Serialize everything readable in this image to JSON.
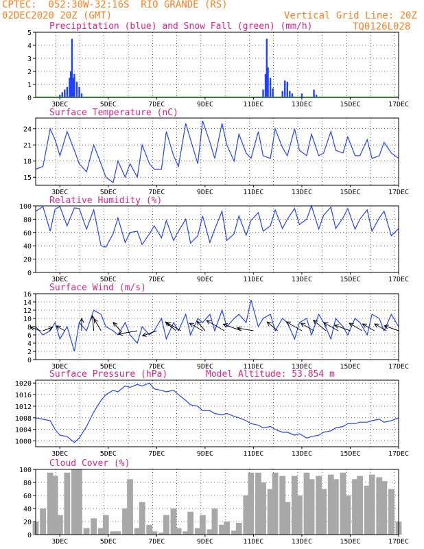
{
  "header": {
    "line1_left": "CPTEC:  052:30W-32:16S  RIO GRANDE (RS)",
    "line2_left": "02DEC2020 20Z (GMT)",
    "line2_right": "Vertical Grid Line: 20Z",
    "line3_right": "TQ0126L028"
  },
  "colors": {
    "header": "#ff7f1f",
    "title": "#e0218a",
    "line": "#2040ff",
    "snow": "#22aa22",
    "cloud": "#a8a8a8"
  },
  "chart_data": [
    {
      "id": "precip",
      "type": "bar",
      "title": "Precipitation (blue) and Snow Fall (green) (mm/h)",
      "xlabels": [
        "3DEC",
        "5DEC",
        "7DEC",
        "9DEC",
        "11DEC",
        "13DEC",
        "15DEC",
        "17DEC"
      ],
      "ylim": [
        0,
        5
      ],
      "yticks": [
        0,
        1,
        2,
        3,
        4,
        5
      ],
      "series": [
        {
          "name": "Precipitation",
          "x": [
            3.0,
            3.1,
            3.2,
            3.3,
            3.4,
            3.45,
            3.5,
            3.55,
            3.6,
            3.7,
            3.8,
            3.9,
            11.4,
            11.5,
            11.55,
            11.6,
            11.7,
            11.8,
            12.2,
            12.3,
            12.4,
            12.5,
            12.6,
            13.0,
            13.5,
            13.6
          ],
          "values": [
            0.2,
            0.4,
            0.6,
            0.8,
            1.5,
            2.0,
            4.5,
            1.5,
            1.8,
            1.2,
            0.8,
            0.3,
            0.6,
            1.8,
            4.5,
            2.3,
            1.5,
            0.7,
            0.5,
            1.3,
            1.2,
            0.5,
            0.3,
            0.3,
            0.6,
            0.2
          ]
        }
      ]
    },
    {
      "id": "temp",
      "type": "line",
      "title": "Surface Temperature (nC)",
      "xlabels": [
        "3DEC",
        "5DEC",
        "7DEC",
        "9DEC",
        "11DEC",
        "13DEC",
        "15DEC",
        "17DEC"
      ],
      "ylim": [
        13.5,
        26
      ],
      "yticks": [
        15,
        18,
        21,
        24
      ],
      "x": [
        2.0,
        2.3,
        2.6,
        2.8,
        3.0,
        3.3,
        3.6,
        3.8,
        4.1,
        4.4,
        4.7,
        4.9,
        5.2,
        5.4,
        5.7,
        5.9,
        6.2,
        6.4,
        6.7,
        6.9,
        7.2,
        7.4,
        7.7,
        7.9,
        8.2,
        8.4,
        8.7,
        8.9,
        9.2,
        9.4,
        9.7,
        9.9,
        10.2,
        10.4,
        10.7,
        10.9,
        11.2,
        11.4,
        11.7,
        11.9,
        12.2,
        12.4,
        12.7,
        12.9,
        13.2,
        13.4,
        13.7,
        13.9,
        14.2,
        14.4,
        14.7,
        14.9,
        15.2,
        15.4,
        15.7,
        15.9,
        16.2,
        16.4,
        16.7,
        17.0
      ],
      "values": [
        16.5,
        17.0,
        24.0,
        22.0,
        19.0,
        23.5,
        20.0,
        17.5,
        16.0,
        21.0,
        17.5,
        15.0,
        14.0,
        18.0,
        15.0,
        17.5,
        15.0,
        21.0,
        17.5,
        16.5,
        16.5,
        23.5,
        19.0,
        17.0,
        25.0,
        22.0,
        17.5,
        25.5,
        21.5,
        18.5,
        25.0,
        21.0,
        18.0,
        23.0,
        19.5,
        18.5,
        23.5,
        19.0,
        18.5,
        24.0,
        20.5,
        19.0,
        24.0,
        20.0,
        19.0,
        23.0,
        19.0,
        19.5,
        23.5,
        20.0,
        19.5,
        22.5,
        19.0,
        19.0,
        22.0,
        18.5,
        19.0,
        21.5,
        19.5,
        18.5
      ]
    },
    {
      "id": "rh",
      "type": "line",
      "title": "Relative Humidity (%)",
      "xlabels": [
        "3DEC",
        "5DEC",
        "7DEC",
        "9DEC",
        "11DEC",
        "13DEC",
        "15DEC",
        "17DEC"
      ],
      "ylim": [
        0,
        100
      ],
      "yticks": [
        0,
        20,
        40,
        60,
        80,
        100
      ],
      "x": [
        2.0,
        2.3,
        2.6,
        2.8,
        3.0,
        3.3,
        3.6,
        3.8,
        4.1,
        4.4,
        4.7,
        4.9,
        5.2,
        5.4,
        5.7,
        5.9,
        6.2,
        6.4,
        6.7,
        6.9,
        7.2,
        7.4,
        7.7,
        7.9,
        8.2,
        8.4,
        8.7,
        8.9,
        9.2,
        9.4,
        9.7,
        9.9,
        10.2,
        10.4,
        10.7,
        10.9,
        11.2,
        11.4,
        11.7,
        11.9,
        12.2,
        12.4,
        12.7,
        12.9,
        13.2,
        13.4,
        13.7,
        13.9,
        14.2,
        14.4,
        14.7,
        14.9,
        15.2,
        15.4,
        15.7,
        15.9,
        16.2,
        16.4,
        16.7,
        17.0
      ],
      "values": [
        92,
        99,
        62,
        95,
        99,
        70,
        97,
        96,
        65,
        94,
        40,
        38,
        58,
        82,
        45,
        60,
        62,
        42,
        58,
        70,
        52,
        78,
        48,
        62,
        80,
        44,
        55,
        85,
        45,
        65,
        92,
        48,
        58,
        85,
        56,
        78,
        90,
        62,
        70,
        94,
        66,
        80,
        96,
        72,
        80,
        100,
        65,
        86,
        98,
        66,
        82,
        96,
        65,
        80,
        94,
        62,
        82,
        92,
        55,
        66
      ]
    },
    {
      "id": "wind",
      "type": "line",
      "title": "Surface Wind (m/s)",
      "xlabels": [
        "3DEC",
        "5DEC",
        "7DEC",
        "9DEC",
        "11DEC",
        "13DEC",
        "15DEC",
        "17DEC"
      ],
      "ylim": [
        0,
        16
      ],
      "yticks": [
        0,
        2,
        4,
        6,
        8,
        10,
        12,
        14,
        16
      ],
      "x": [
        2.0,
        2.3,
        2.6,
        2.8,
        3.0,
        3.3,
        3.6,
        3.8,
        4.1,
        4.4,
        4.7,
        4.9,
        5.2,
        5.4,
        5.7,
        5.9,
        6.2,
        6.4,
        6.7,
        6.9,
        7.2,
        7.4,
        7.7,
        7.9,
        8.2,
        8.4,
        8.7,
        8.9,
        9.2,
        9.4,
        9.7,
        9.9,
        10.2,
        10.4,
        10.7,
        10.9,
        11.2,
        11.4,
        11.7,
        11.9,
        12.2,
        12.4,
        12.7,
        12.9,
        13.2,
        13.4,
        13.7,
        13.9,
        14.2,
        14.4,
        14.7,
        14.9,
        15.2,
        15.4,
        15.7,
        15.9,
        16.2,
        16.4,
        16.7,
        17.0
      ],
      "values": [
        8,
        6,
        7,
        9,
        5,
        8,
        2,
        9,
        7,
        12,
        11,
        8,
        7,
        6,
        9,
        6,
        4,
        8,
        6,
        7,
        10,
        5,
        9,
        7,
        11,
        6,
        10,
        9,
        11,
        7,
        12,
        8,
        10,
        11,
        9,
        14.5,
        8,
        10,
        11,
        7,
        10,
        9,
        5,
        9,
        10,
        6,
        11,
        9,
        5,
        10,
        8,
        6,
        10,
        9,
        6,
        11,
        10,
        7,
        11,
        8
      ],
      "arrows": [
        {
          "x": 2.2,
          "angle": -160,
          "len": 16
        },
        {
          "x": 2.3,
          "angle": -20,
          "len": 15
        },
        {
          "x": 3.2,
          "angle": -150,
          "len": 14
        },
        {
          "x": 3.9,
          "angle": -90,
          "len": 18
        },
        {
          "x": 4.4,
          "angle": -95,
          "len": 22
        },
        {
          "x": 4.7,
          "angle": -120,
          "len": 20
        },
        {
          "x": 5.5,
          "angle": -130,
          "len": 16
        },
        {
          "x": 6.2,
          "angle": 170,
          "len": 28
        },
        {
          "x": 7.0,
          "angle": 160,
          "len": 22
        },
        {
          "x": 7.8,
          "angle": -140,
          "len": 20
        },
        {
          "x": 8.0,
          "angle": -150,
          "len": 24
        },
        {
          "x": 8.9,
          "angle": -150,
          "len": 22
        },
        {
          "x": 9.0,
          "angle": -130,
          "len": 18
        },
        {
          "x": 9.8,
          "angle": -150,
          "len": 30
        },
        {
          "x": 10.5,
          "angle": -160,
          "len": 28
        },
        {
          "x": 11.0,
          "angle": -170,
          "len": 24
        },
        {
          "x": 12.0,
          "angle": -140,
          "len": 20
        },
        {
          "x": 13.0,
          "angle": -150,
          "len": 26
        },
        {
          "x": 13.5,
          "angle": -150,
          "len": 22
        },
        {
          "x": 14.0,
          "angle": -140,
          "len": 24
        },
        {
          "x": 14.5,
          "angle": -150,
          "len": 24
        },
        {
          "x": 15.0,
          "angle": -160,
          "len": 24
        },
        {
          "x": 15.5,
          "angle": -150,
          "len": 22
        },
        {
          "x": 16.0,
          "angle": -150,
          "len": 20
        },
        {
          "x": 16.5,
          "angle": -150,
          "len": 20
        },
        {
          "x": 17.0,
          "angle": -160,
          "len": 22
        }
      ]
    },
    {
      "id": "press",
      "type": "line",
      "title": "Surface Pressure (hPa)",
      "subtitle": "Model Altitude: 53.854 m",
      "xlabels": [
        "3DEC",
        "5DEC",
        "7DEC",
        "9DEC",
        "11DEC",
        "13DEC",
        "15DEC",
        "17DEC"
      ],
      "ylim": [
        998,
        1021
      ],
      "yticks": [
        1000,
        1004,
        1008,
        1012,
        1016,
        1020
      ],
      "x": [
        2.0,
        2.3,
        2.6,
        2.8,
        3.0,
        3.3,
        3.6,
        3.8,
        4.1,
        4.4,
        4.7,
        4.9,
        5.2,
        5.4,
        5.7,
        5.9,
        6.2,
        6.4,
        6.7,
        6.9,
        7.2,
        7.4,
        7.7,
        7.9,
        8.2,
        8.4,
        8.7,
        8.9,
        9.2,
        9.4,
        9.7,
        9.9,
        10.2,
        10.4,
        10.7,
        10.9,
        11.2,
        11.4,
        11.7,
        11.9,
        12.2,
        12.4,
        12.7,
        12.9,
        13.2,
        13.4,
        13.7,
        13.9,
        14.2,
        14.4,
        14.7,
        14.9,
        15.2,
        15.4,
        15.7,
        15.9,
        16.2,
        16.4,
        16.7,
        17.0
      ],
      "values": [
        1008,
        1007.5,
        1007,
        1004,
        1002,
        1001.5,
        999.5,
        1001,
        1005,
        1010,
        1014,
        1016,
        1017.5,
        1017,
        1019,
        1018.5,
        1019.5,
        1019,
        1020,
        1018,
        1017.5,
        1017,
        1017.5,
        1016,
        1014,
        1012.5,
        1012,
        1010.5,
        1010.5,
        1009.5,
        1009,
        1009.5,
        1008.5,
        1008,
        1007,
        1006,
        1005.5,
        1004.5,
        1005,
        1004,
        1003,
        1003,
        1002,
        1002.5,
        1001,
        1001.5,
        1002,
        1003,
        1003.5,
        1004.5,
        1005,
        1006,
        1006,
        1006.5,
        1006.5,
        1007,
        1007.5,
        1006.5,
        1007,
        1008
      ]
    },
    {
      "id": "cloud",
      "type": "bar",
      "title": "Cloud Cover (%)",
      "xlabels": [
        "3DEC",
        "5DEC",
        "7DEC",
        "9DEC",
        "11DEC",
        "13DEC",
        "15DEC",
        "17DEC"
      ],
      "ylim": [
        0,
        100
      ],
      "yticks": [
        0,
        20,
        40,
        60,
        80,
        100
      ],
      "x": [
        2.0,
        2.3,
        2.6,
        2.8,
        3.0,
        3.3,
        3.6,
        3.8,
        4.1,
        4.4,
        4.7,
        4.9,
        5.2,
        5.4,
        5.7,
        5.9,
        6.2,
        6.4,
        6.7,
        6.9,
        7.2,
        7.4,
        7.7,
        7.9,
        8.2,
        8.4,
        8.7,
        8.9,
        9.2,
        9.4,
        9.7,
        9.9,
        10.2,
        10.4,
        10.7,
        10.9,
        11.2,
        11.4,
        11.7,
        11.9,
        12.2,
        12.4,
        12.7,
        12.9,
        13.2,
        13.4,
        13.7,
        13.9,
        14.2,
        14.4,
        14.7,
        14.9,
        15.2,
        15.4,
        15.7,
        15.9,
        16.2,
        16.4,
        16.7,
        17.0
      ],
      "values": [
        20,
        40,
        95,
        90,
        30,
        95,
        100,
        100,
        10,
        25,
        10,
        30,
        5,
        5,
        40,
        85,
        10,
        50,
        15,
        5,
        3,
        30,
        40,
        10,
        5,
        35,
        10,
        30,
        8,
        40,
        15,
        20,
        6,
        18,
        60,
        95,
        95,
        80,
        70,
        95,
        90,
        50,
        90,
        60,
        95,
        85,
        90,
        70,
        92,
        85,
        95,
        60,
        85,
        90,
        75,
        92,
        88,
        82,
        70,
        20
      ]
    }
  ]
}
